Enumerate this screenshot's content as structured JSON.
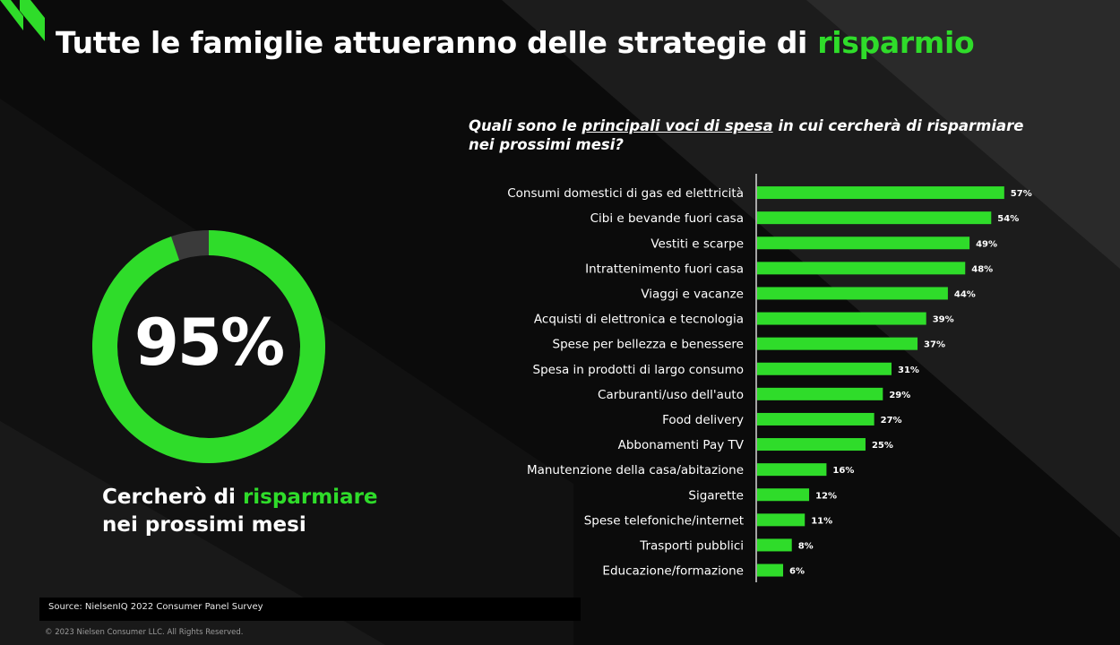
{
  "title": {
    "main": "Tutte le famiglie attueranno delle strategie di",
    "highlight": "risparmio"
  },
  "question": {
    "before": "Quali sono le",
    "underlined": "principali voci di spesa",
    "after": "in cui cercherà di risparmiare",
    "line2": "nei prossimi mesi?"
  },
  "kpi": {
    "value": "95%",
    "fraction": 0.95,
    "caption_before": "Cercherò di",
    "caption_highlight": "risparmiare",
    "caption_line2": "nei prossimi mesi"
  },
  "source": "Source: NielsenIQ 2022 Consumer Panel Survey",
  "copyright": "© 2023 Nielsen Consumer LLC. All Rights Reserved.",
  "colors": {
    "accent": "#2fdc2a",
    "ring_rest": "#3a3a3a",
    "background": "#0b0b0b"
  },
  "logo_icon": "nielseniq-logo-icon",
  "chart_data": {
    "type": "bar",
    "orientation": "horizontal",
    "categories": [
      "Consumi domestici di gas ed elettricità",
      "Cibi e bevande fuori casa",
      "Vestiti e scarpe",
      "Intrattenimento fuori casa",
      "Viaggi e vacanze",
      "Acquisti di elettronica e tecnologia",
      "Spese per bellezza e benessere",
      "Spesa in prodotti di largo consumo",
      "Carburanti/uso dell'auto",
      "Food delivery",
      "Abbonamenti Pay TV",
      "Manutenzione della casa/abitazione",
      "Sigarette",
      "Spese telefoniche/internet",
      "Trasporti pubblici",
      "Educazione/formazione"
    ],
    "values": [
      57,
      54,
      49,
      48,
      44,
      39,
      37,
      31,
      29,
      27,
      25,
      16,
      12,
      11,
      8,
      6
    ],
    "labels": [
      "57%",
      "54%",
      "49%",
      "48%",
      "44%",
      "39%",
      "37%",
      "31%",
      "29%",
      "27%",
      "25%",
      "16%",
      "12%",
      "11%",
      "8%",
      "6%"
    ],
    "xlim": [
      0,
      62
    ],
    "grid": false,
    "bar_color": "#2fdc2a"
  }
}
